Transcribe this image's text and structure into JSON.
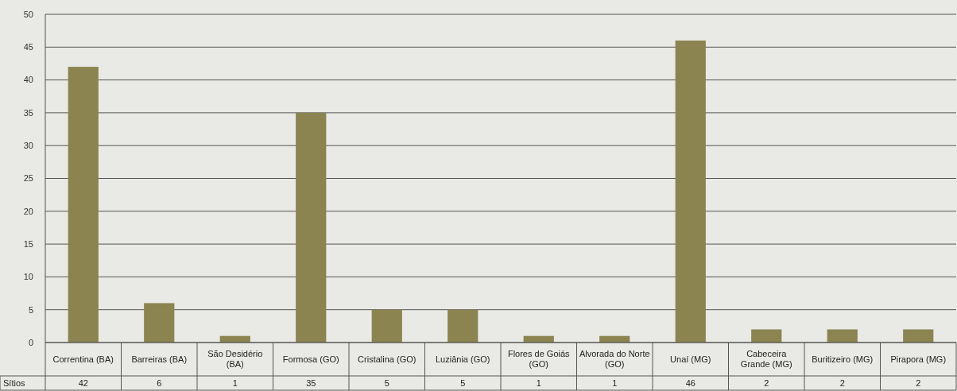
{
  "chart_data": {
    "type": "bar",
    "categories": [
      "Correntina (BA)",
      "Barreiras (BA)",
      "São Desidério (BA)",
      "Formosa (GO)",
      "Cristalina (GO)",
      "Luziânia (GO)",
      "Flores de Goiás (GO)",
      "Alvorada do Norte (GO)",
      "Unaí (MG)",
      "Cabeceira Grande (MG)",
      "Buritizeiro (MG)",
      "Pirapora (MG)"
    ],
    "series": [
      {
        "name": "Sítios",
        "color": "#8b8450",
        "values": [
          42,
          6,
          1,
          35,
          5,
          5,
          1,
          1,
          46,
          2,
          2,
          2
        ]
      }
    ],
    "ylim": [
      0,
      50
    ],
    "yticks": [
      0,
      5,
      10,
      15,
      20,
      25,
      30,
      35,
      40,
      45,
      50
    ],
    "grid": "y",
    "data_labels": true
  }
}
